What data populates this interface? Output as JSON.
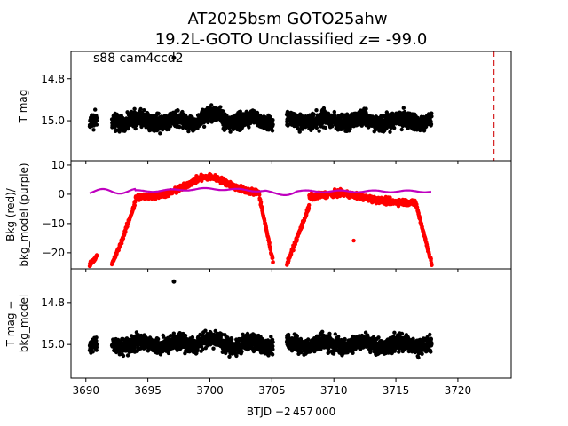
{
  "title_line1": "AT2025bsm  GOTO25ahw",
  "title_line2": "19.2L-GOTO Unclassified z= -99.0",
  "annotation": "s88 cam4ccd2",
  "xlabel": "BTJD −2 457 000",
  "chart_data": [
    {
      "type": "scatter",
      "panel": "top",
      "ylabel": "T mag",
      "xlim": [
        3688.8,
        3724.3
      ],
      "ylim": [
        15.19,
        14.67
      ],
      "xticks": [
        3690,
        3695,
        3700,
        3705,
        3710,
        3715,
        3720
      ],
      "yticks": [
        14.8,
        15.0
      ],
      "ytick_labels": [
        "14.8",
        "15.0"
      ],
      "series": [
        {
          "color": "#000000",
          "segments": [
            [
              3690.3,
              3690.9
            ],
            [
              3692.1,
              3705.1
            ],
            [
              3706.2,
              3717.9
            ]
          ],
          "center": 15.0,
          "spread": 0.065
        }
      ],
      "outliers": [
        {
          "x": 3697.1,
          "y": 14.7
        }
      ],
      "vline": {
        "x": 3722.9,
        "color": "#d62728",
        "style": "dashed"
      }
    },
    {
      "type": "scatter",
      "panel": "middle",
      "ylabel_lines": [
        "Bkg (red)/",
        "bkg_model (purple)"
      ],
      "xlim": [
        3688.8,
        3724.3
      ],
      "ylim": [
        -25.5,
        11.5
      ],
      "yticks": [
        10,
        0,
        -10,
        -20
      ],
      "ytick_labels": [
        "10",
        "0",
        "−10",
        "−20"
      ],
      "series": [
        {
          "color": "#ff0000",
          "note": "background flux"
        },
        {
          "color": "#bf00bf",
          "note": "background model"
        }
      ],
      "outliers": [
        {
          "x": 3711.6,
          "y": -15.8
        }
      ]
    },
    {
      "type": "scatter",
      "panel": "bottom",
      "ylabel_lines": [
        "T mag −",
        "bkg_model"
      ],
      "xlim": [
        3688.8,
        3724.3
      ],
      "ylim": [
        15.16,
        14.64
      ],
      "yticks": [
        14.8,
        15.0
      ],
      "ytick_labels": [
        "14.8",
        "15.0"
      ],
      "series": [
        {
          "color": "#000000",
          "segments": [
            [
              3690.3,
              3690.9
            ],
            [
              3692.1,
              3705.1
            ],
            [
              3706.2,
              3717.9
            ]
          ],
          "center": 15.0,
          "spread": 0.065
        }
      ],
      "outliers": [
        {
          "x": 3697.1,
          "y": 14.7
        }
      ]
    }
  ]
}
